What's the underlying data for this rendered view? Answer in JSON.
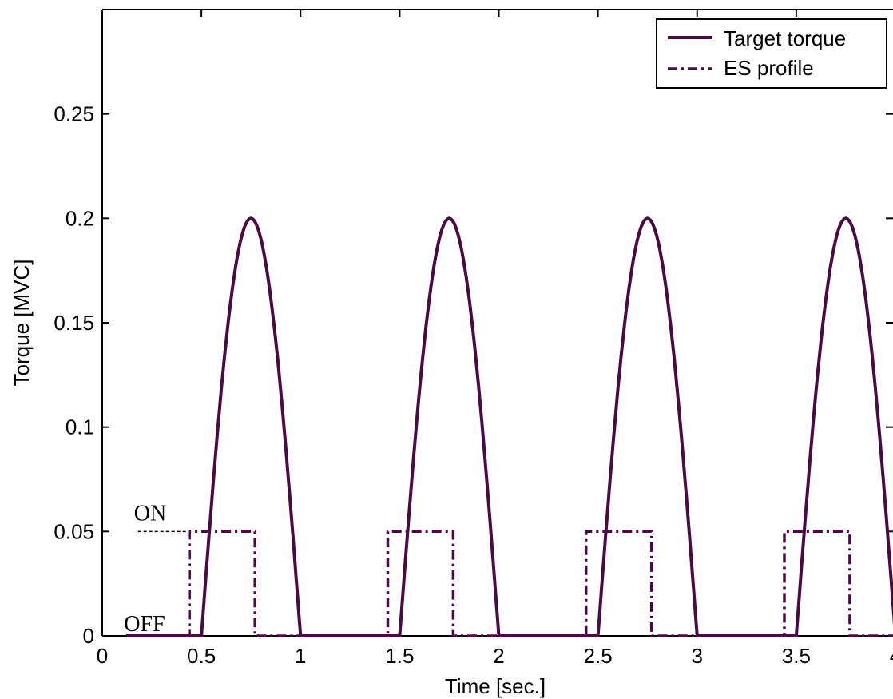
{
  "chart_data": {
    "type": "line",
    "title": "",
    "xlabel": "Time [sec.]",
    "ylabel": "Torque [MVC]",
    "xlim": [
      0,
      4
    ],
    "ylim": [
      0,
      0.3
    ],
    "xticks": [
      0,
      0.5,
      1,
      1.5,
      2,
      2.5,
      3,
      3.5,
      4
    ],
    "xtick_labels": [
      "0",
      "0.5",
      "1",
      "1.5",
      "2",
      "2.5",
      "3",
      "3.5",
      "4"
    ],
    "yticks": [
      0,
      0.05,
      0.1,
      0.15,
      0.2,
      0.25
    ],
    "ytick_labels": [
      "0",
      "0.05",
      "0.1",
      "0.15",
      "0.2",
      "0.25"
    ],
    "grid": false,
    "legend_position": "top-right",
    "color": "#4b0a46",
    "series": [
      {
        "name": "Target torque",
        "style": "solid",
        "x": [
          0.12,
          0.5,
          0.5625,
          0.625,
          0.6875,
          0.75,
          0.8125,
          0.875,
          0.9375,
          1.0,
          1.5,
          1.5625,
          1.625,
          1.6875,
          1.75,
          1.8125,
          1.875,
          1.9375,
          2.0,
          2.5,
          2.5625,
          2.625,
          2.6875,
          2.75,
          2.8125,
          2.875,
          2.9375,
          3.0,
          3.5,
          3.5625,
          3.625,
          3.6875,
          3.75,
          3.8125,
          3.875,
          3.9375,
          4.0
        ],
        "y": [
          0,
          0,
          0.0765,
          0.1414,
          0.1848,
          0.2,
          0.1848,
          0.1414,
          0.0765,
          0,
          0,
          0.0765,
          0.1414,
          0.1848,
          0.2,
          0.1848,
          0.1414,
          0.0765,
          0,
          0,
          0.0765,
          0.1414,
          0.1848,
          0.2,
          0.1848,
          0.1414,
          0.0765,
          0,
          0,
          0.0765,
          0.1414,
          0.1848,
          0.2,
          0.1848,
          0.1414,
          0.0765,
          0
        ]
      },
      {
        "name": "ES profile",
        "style": "dashdot",
        "x": [
          0.12,
          0.44,
          0.44,
          0.77,
          0.77,
          1.44,
          1.44,
          1.77,
          1.77,
          2.44,
          2.44,
          2.77,
          2.77,
          3.44,
          3.44,
          3.77,
          3.77,
          4.0
        ],
        "y": [
          0,
          0,
          0.05,
          0.05,
          0,
          0,
          0.05,
          0.05,
          0,
          0,
          0.05,
          0.05,
          0,
          0,
          0.05,
          0.05,
          0,
          0
        ]
      }
    ],
    "annotations": [
      {
        "text": "ON",
        "x": 0.27,
        "y": 0.05
      },
      {
        "text": "OFF",
        "x": 0.24,
        "y": 0.0
      }
    ]
  }
}
